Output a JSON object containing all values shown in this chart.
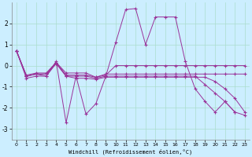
{
  "xlabel": "Windchill (Refroidissement éolien,°C)",
  "bg_color": "#cceeff",
  "grid_color": "#aaddcc",
  "line_color": "#993399",
  "xlim_min": -0.5,
  "xlim_max": 23.5,
  "ylim_min": -3.5,
  "ylim_max": 3.0,
  "xticks": [
    0,
    1,
    2,
    3,
    4,
    5,
    6,
    7,
    8,
    9,
    10,
    11,
    12,
    13,
    14,
    15,
    16,
    17,
    18,
    19,
    20,
    21,
    22,
    23
  ],
  "yticks": [
    -3,
    -2,
    -1,
    0,
    1,
    2
  ],
  "series": [
    {
      "x": [
        0,
        1,
        2,
        3,
        4,
        5,
        6,
        7,
        8,
        9,
        10,
        11,
        12,
        13,
        14,
        15,
        16,
        17,
        18,
        19,
        20,
        21,
        22
      ],
      "y": [
        0.7,
        -0.5,
        -0.4,
        -0.5,
        0.2,
        -2.7,
        -0.5,
        -2.3,
        -1.8,
        -0.5,
        1.1,
        2.65,
        2.7,
        1.0,
        2.3,
        2.3,
        2.3,
        0.2,
        -1.1,
        -1.7,
        -2.2,
        -1.7,
        -2.2
      ]
    },
    {
      "x": [
        0,
        1,
        2,
        3,
        4,
        5,
        6,
        7,
        8,
        9,
        10,
        11,
        12,
        13,
        14,
        15,
        16,
        17,
        18,
        19,
        20,
        21,
        22,
        23
      ],
      "y": [
        0.7,
        -0.5,
        -0.4,
        -0.4,
        0.15,
        -0.45,
        -0.45,
        -0.45,
        -0.55,
        -0.45,
        0.0,
        0.0,
        0.0,
        0.0,
        0.0,
        0.0,
        0.0,
        0.0,
        0.0,
        0.0,
        0.0,
        0.0,
        0.0,
        0.0
      ]
    },
    {
      "x": [
        0,
        1,
        2,
        3,
        4,
        5,
        6,
        7,
        8,
        9,
        10,
        11,
        12,
        13,
        14,
        15,
        16,
        17,
        18,
        19,
        20,
        21,
        22,
        23
      ],
      "y": [
        0.7,
        -0.45,
        -0.35,
        -0.35,
        0.15,
        -0.35,
        -0.35,
        -0.35,
        -0.55,
        -0.4,
        -0.4,
        -0.4,
        -0.4,
        -0.4,
        -0.4,
        -0.4,
        -0.4,
        -0.4,
        -0.4,
        -0.4,
        -0.4,
        -0.4,
        -0.4,
        -0.4
      ]
    },
    {
      "x": [
        0,
        1,
        2,
        3,
        4,
        5,
        6,
        7,
        8,
        9,
        10,
        11,
        12,
        13,
        14,
        15,
        16,
        17,
        18,
        19,
        20,
        21,
        22,
        23
      ],
      "y": [
        0.7,
        -0.6,
        -0.5,
        -0.5,
        0.1,
        -0.5,
        -0.6,
        -0.6,
        -0.65,
        -0.55,
        -0.55,
        -0.55,
        -0.55,
        -0.55,
        -0.55,
        -0.55,
        -0.55,
        -0.55,
        -0.55,
        -0.55,
        -0.75,
        -1.1,
        -1.55,
        -2.2
      ]
    },
    {
      "x": [
        0,
        1,
        2,
        3,
        4,
        5,
        6,
        7,
        8,
        9,
        10,
        11,
        12,
        13,
        14,
        15,
        16,
        17,
        18,
        19,
        20,
        21,
        22,
        23
      ],
      "y": [
        0.7,
        -0.5,
        -0.4,
        -0.4,
        0.1,
        -0.5,
        -0.5,
        -0.5,
        -0.6,
        -0.5,
        -0.5,
        -0.5,
        -0.5,
        -0.5,
        -0.5,
        -0.5,
        -0.5,
        -0.5,
        -0.5,
        -0.9,
        -1.3,
        -1.7,
        -2.2,
        -2.35
      ]
    }
  ]
}
